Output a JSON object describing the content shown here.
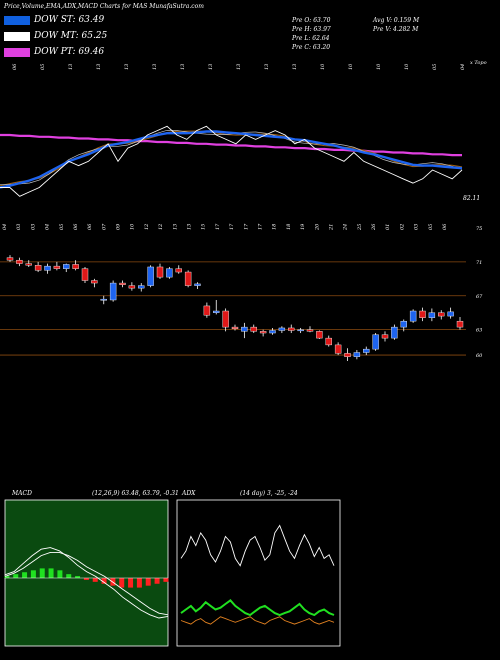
{
  "header": {
    "title": "Price,Volume,EMA,ADX,MACD Charts for MAS MunafaSutra.com"
  },
  "legend": [
    {
      "label": "DOW ST: 63.49",
      "color": "#1060e0"
    },
    {
      "label": "DOW MT: 65.25",
      "color": "#ffffff"
    },
    {
      "label": "DOW PT: 69.46",
      "color": "#e040e0"
    }
  ],
  "quote": {
    "prev_open": "Pre  O: 63.70",
    "prev_high": "Pre  H: 63.97",
    "prev_low": "Pre  L: 62.64",
    "prev_close": "Pre  C: 63.20",
    "avg_volume": "Avg V: 0.159  M",
    "prev_volume": "Pre  V: 4.282  M"
  },
  "colors": {
    "up": "#1e64f0",
    "down": "#e01818",
    "ema_blue": "#1e64f0",
    "ema_magenta": "#e040e0",
    "ema_orange": "#a06010",
    "grid": "#8a4a10",
    "adx_green": "#20e020",
    "adx_orange": "#e08020",
    "macd_green": "#20e020",
    "macd_red": "#ff2020"
  },
  "chart_data": [
    {
      "type": "line",
      "title": "",
      "label_corner": "x Topo",
      "top_date_labels": [
        "06",
        "05",
        "13",
        "13",
        "13",
        "13",
        "13",
        "13",
        "13",
        "13",
        "13",
        "10",
        "10",
        "10",
        "10",
        "05",
        "04"
      ],
      "last_value_label": "82.11",
      "series": [
        {
          "name": "",
          "values": [
            80,
            80,
            79,
            79.5,
            80,
            81,
            82,
            83,
            82.5,
            83,
            84,
            85,
            83,
            84.5,
            85,
            86,
            86.5,
            87,
            86,
            85.5,
            86.5,
            87,
            86,
            85.5,
            85,
            86,
            85.5,
            86,
            86.5,
            86,
            85,
            85.5,
            84.5,
            84,
            83.5,
            83,
            84,
            83,
            82.5,
            82,
            81.5,
            81,
            80.5,
            81,
            82,
            81.5,
            81,
            82
          ]
        },
        {
          "name": "",
          "values": [
            80,
            80.2,
            80.5,
            80.8,
            81.2,
            81.8,
            82.4,
            83,
            83.4,
            83.8,
            84.3,
            84.8,
            85,
            85.2,
            85.5,
            85.8,
            86,
            86.2,
            86.2,
            86.2,
            86.3,
            86.4,
            86.4,
            86.3,
            86.2,
            86.1,
            86,
            85.9,
            85.8,
            85.7,
            85.5,
            85.4,
            85.2,
            85,
            84.8,
            84.5,
            84.3,
            84,
            83.8,
            83.5,
            83.2,
            82.9,
            82.6,
            82.5,
            82.5,
            82.4,
            82.3,
            82.2
          ]
        },
        {
          "name": "",
          "values": [
            86,
            86,
            85.9,
            85.9,
            85.8,
            85.8,
            85.7,
            85.7,
            85.6,
            85.6,
            85.5,
            85.5,
            85.4,
            85.4,
            85.3,
            85.3,
            85.2,
            85.2,
            85.1,
            85.1,
            85,
            85,
            84.9,
            84.9,
            84.8,
            84.8,
            84.7,
            84.7,
            84.6,
            84.6,
            84.5,
            84.5,
            84.4,
            84.4,
            84.3,
            84.3,
            84.2,
            84.2,
            84.1,
            84.1,
            84,
            84,
            83.9,
            83.9,
            83.8,
            83.8,
            83.7,
            83.7
          ]
        }
      ]
    },
    {
      "type": "candlestick",
      "title": "",
      "ylim": [
        58,
        75
      ],
      "right_ticks": [
        "75",
        "71",
        "67",
        "63",
        "60"
      ],
      "right_tick_values": [
        75,
        71,
        67,
        63,
        60
      ],
      "hlines": [
        71,
        67,
        63,
        60
      ],
      "date_labels": [
        "04",
        "03",
        "03",
        "04",
        "05",
        "06",
        "06",
        "07",
        "09",
        "10",
        "12",
        "12",
        "13",
        "13",
        "15",
        "17",
        "17",
        "17",
        "17",
        "18",
        "18",
        "19",
        "20",
        "21",
        "24",
        "25",
        "26",
        "01",
        "02",
        "03",
        "05",
        "06"
      ],
      "candles": [
        [
          71.5,
          71.8,
          71.0,
          71.2
        ],
        [
          71.2,
          71.5,
          70.5,
          70.8
        ],
        [
          70.8,
          71.2,
          70.4,
          70.6
        ],
        [
          70.6,
          71.0,
          69.8,
          70.0
        ],
        [
          70.0,
          70.8,
          69.6,
          70.5
        ],
        [
          70.5,
          71.0,
          70.0,
          70.2
        ],
        [
          70.2,
          70.8,
          69.8,
          70.7
        ],
        [
          70.7,
          71.2,
          70.0,
          70.2
        ],
        [
          70.2,
          70.4,
          68.5,
          68.8
        ],
        [
          68.8,
          69.0,
          68.0,
          68.5
        ],
        [
          66.5,
          67.0,
          66.0,
          66.6
        ],
        [
          66.5,
          68.8,
          66.3,
          68.5
        ],
        [
          68.5,
          68.8,
          68.0,
          68.3
        ],
        [
          68.2,
          68.6,
          67.6,
          67.9
        ],
        [
          67.9,
          68.5,
          67.5,
          68.2
        ],
        [
          68.2,
          70.6,
          68.0,
          70.4
        ],
        [
          70.4,
          70.8,
          69.0,
          69.2
        ],
        [
          69.2,
          70.4,
          69.0,
          70.2
        ],
        [
          70.2,
          70.6,
          69.6,
          69.8
        ],
        [
          69.8,
          70.0,
          68.0,
          68.2
        ],
        [
          68.2,
          68.6,
          67.8,
          68.4
        ],
        [
          65.8,
          66.2,
          64.4,
          64.7
        ],
        [
          65.0,
          66.5,
          64.8,
          65.2
        ],
        [
          65.2,
          65.5,
          62.8,
          63.3
        ],
        [
          63.3,
          63.6,
          62.9,
          63.1
        ],
        [
          62.8,
          63.8,
          62.0,
          63.3
        ],
        [
          63.3,
          63.6,
          62.6,
          62.8
        ],
        [
          62.8,
          63.0,
          62.2,
          62.6
        ],
        [
          62.6,
          63.2,
          62.4,
          62.9
        ],
        [
          62.9,
          63.4,
          62.6,
          63.2
        ],
        [
          63.2,
          63.6,
          62.6,
          62.9
        ],
        [
          62.9,
          63.2,
          62.6,
          63.0
        ],
        [
          63.0,
          63.4,
          62.7,
          62.8
        ],
        [
          62.8,
          62.9,
          61.9,
          62.0
        ],
        [
          62.0,
          62.3,
          61.0,
          61.2
        ],
        [
          61.2,
          61.5,
          60.0,
          60.2
        ],
        [
          60.2,
          60.8,
          59.3,
          59.8
        ],
        [
          59.8,
          60.6,
          59.5,
          60.3
        ],
        [
          60.3,
          61.0,
          60.0,
          60.7
        ],
        [
          60.7,
          62.6,
          60.5,
          62.4
        ],
        [
          62.4,
          62.8,
          61.6,
          62.0
        ],
        [
          62.0,
          63.6,
          61.8,
          63.3
        ],
        [
          63.3,
          64.2,
          62.8,
          64.0
        ],
        [
          64.0,
          65.4,
          63.8,
          65.2
        ],
        [
          65.2,
          65.6,
          64.0,
          64.4
        ],
        [
          64.4,
          65.5,
          64.0,
          65.0
        ],
        [
          65.0,
          65.3,
          64.2,
          64.6
        ],
        [
          64.6,
          65.6,
          64.3,
          65.1
        ],
        [
          64.0,
          64.5,
          63.0,
          63.3
        ]
      ]
    },
    {
      "type": "line",
      "title": "MACD",
      "params": "(12,26,9) 63.48, 63.79, -0.31",
      "series": [
        {
          "name": "",
          "values": [
            0.2,
            0.4,
            0.9,
            1.4,
            1.8,
            1.9,
            1.7,
            1.3,
            0.8,
            0.4,
            0.1,
            -0.3,
            -0.7,
            -1.2,
            -1.6,
            -2.0,
            -2.3,
            -2.5,
            -2.4
          ]
        },
        {
          "name": "",
          "values": [
            0.1,
            0.3,
            0.6,
            1.0,
            1.4,
            1.6,
            1.6,
            1.4,
            1.1,
            0.7,
            0.4,
            0.1,
            -0.3,
            -0.7,
            -1.1,
            -1.5,
            -1.9,
            -2.2,
            -2.3
          ]
        }
      ],
      "histogram": [
        0.1,
        0.2,
        0.3,
        0.4,
        0.5,
        0.5,
        0.4,
        0.2,
        0.1,
        -0.1,
        -0.2,
        -0.3,
        -0.4,
        -0.5,
        -0.5,
        -0.5,
        -0.4,
        -0.3,
        -0.2
      ]
    },
    {
      "type": "line",
      "title": "ADX",
      "params": "(14 day) 3, -25, -24",
      "series": [
        {
          "name": "",
          "values": [
            48,
            52,
            60,
            55,
            62,
            58,
            50,
            46,
            52,
            60,
            57,
            48,
            44,
            52,
            58,
            60,
            54,
            47,
            50,
            62,
            66,
            59,
            52,
            48,
            55,
            61,
            56,
            49,
            54,
            48,
            50,
            44
          ]
        },
        {
          "name": "",
          "values": [
            18,
            20,
            22,
            19,
            21,
            24,
            22,
            20,
            21,
            23,
            25,
            22,
            20,
            18,
            17,
            19,
            21,
            22,
            20,
            18,
            17,
            18,
            19,
            21,
            23,
            20,
            18,
            17,
            19,
            20,
            18,
            17
          ]
        },
        {
          "name": "",
          "values": [
            14,
            13,
            12,
            14,
            15,
            13,
            12,
            14,
            16,
            15,
            14,
            13,
            14,
            15,
            16,
            14,
            13,
            12,
            14,
            15,
            16,
            14,
            13,
            12,
            13,
            14,
            15,
            13,
            12,
            13,
            14,
            13
          ]
        }
      ]
    }
  ]
}
